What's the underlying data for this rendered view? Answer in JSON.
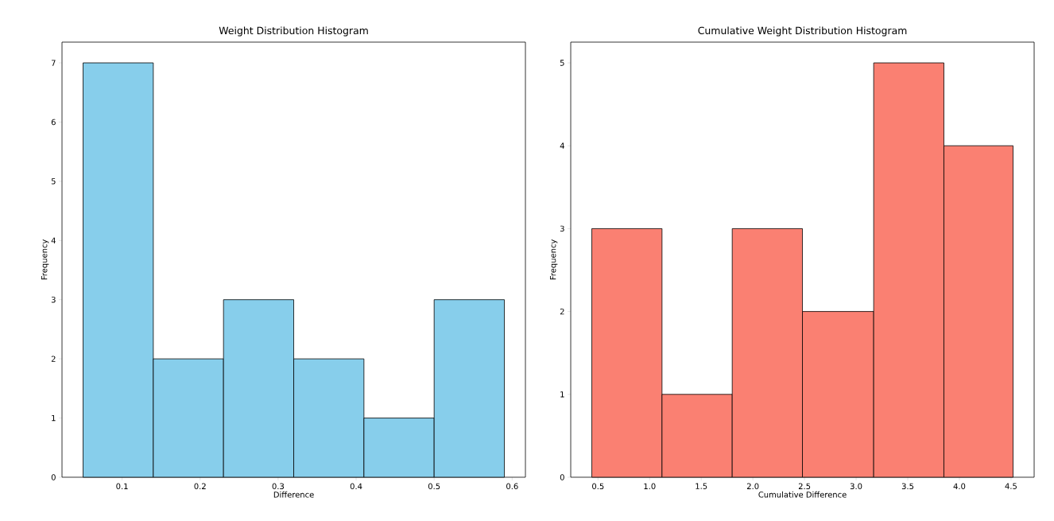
{
  "chart_data": [
    {
      "type": "histogram",
      "title": "Weight Distribution Histogram",
      "xlabel": "Difference",
      "ylabel": "Frequency",
      "color": "#87ceeb",
      "bins": [
        0.05,
        0.14,
        0.23,
        0.32,
        0.41,
        0.5,
        0.59
      ],
      "values": [
        7,
        2,
        3,
        2,
        1,
        3
      ],
      "xlim": [
        0.023,
        0.617
      ],
      "ylim": [
        0,
        7.35
      ],
      "xticks": [
        0.1,
        0.2,
        0.3,
        0.4,
        0.5,
        0.6
      ],
      "yticks": [
        0,
        1,
        2,
        3,
        4,
        5,
        6,
        7
      ]
    },
    {
      "type": "histogram",
      "title": "Cumulative Weight Distribution Histogram",
      "xlabel": "Cumulative Difference",
      "ylabel": "Frequency",
      "color": "#fa8072",
      "bins": [
        0.44,
        1.12,
        1.8,
        2.48,
        3.17,
        3.85,
        4.52
      ],
      "values": [
        3,
        1,
        3,
        2,
        5,
        4
      ],
      "xlim": [
        0.236,
        4.724
      ],
      "ylim": [
        0,
        5.25
      ],
      "xticks": [
        0.5,
        {
          "value": 1,
          "label": "1.0"
        },
        1.5,
        {
          "value": 2,
          "label": "2.0"
        },
        2.5,
        {
          "value": 3,
          "label": "3.0"
        },
        3.5,
        {
          "value": 4,
          "label": "4.0"
        },
        4.5
      ],
      "yticks": [
        0,
        1,
        2,
        3,
        4,
        5
      ]
    }
  ]
}
